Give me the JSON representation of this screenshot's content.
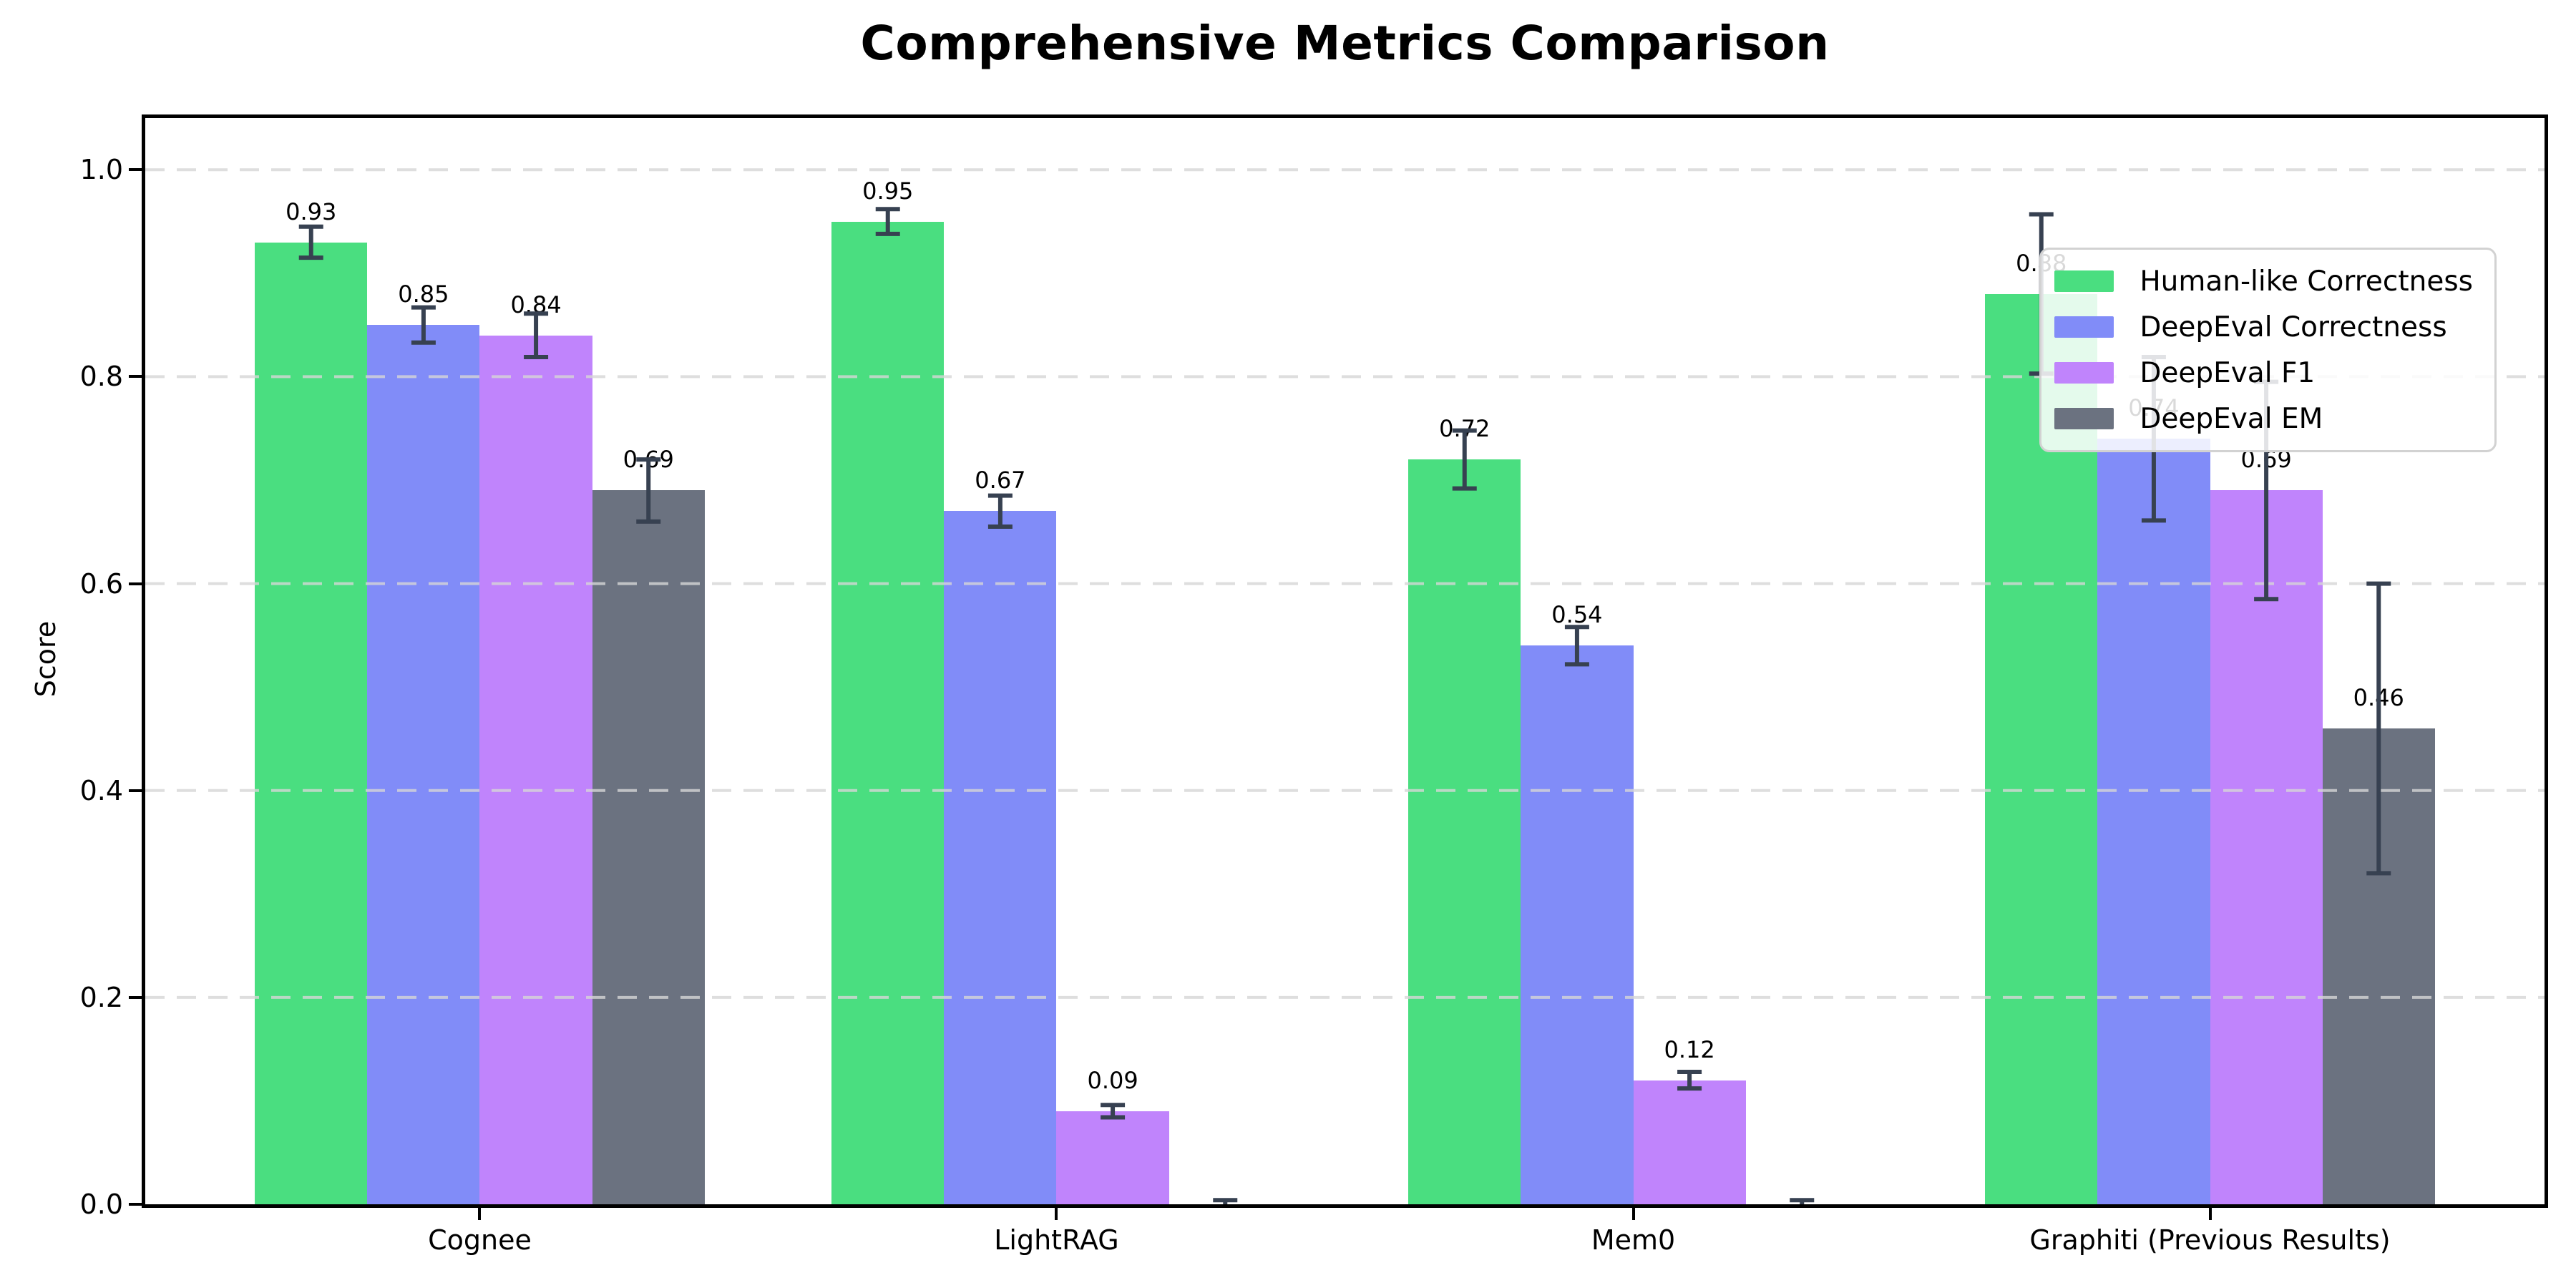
{
  "title": "Comprehensive Metrics Comparison",
  "chart_data": {
    "type": "bar",
    "title": "Comprehensive Metrics Comparison",
    "xlabel": "",
    "ylabel": "Score",
    "ylim": [
      0,
      1.05
    ],
    "yticks": [
      0.0,
      0.2,
      0.4,
      0.6,
      0.8,
      1.0
    ],
    "ytick_labels": [
      "0.0",
      "0.2",
      "0.4",
      "0.6",
      "0.8",
      "1.0"
    ],
    "grid": "horizontal-dashed",
    "grid_color": "#d6d6d6",
    "error_bar_color": "#374151",
    "legend_position": "upper-right",
    "categories": [
      "Cognee",
      "LightRAG",
      "Mem0",
      "Graphiti (Previous Results)"
    ],
    "series": [
      {
        "name": "Human-like Correctness",
        "color": "#4ade80",
        "values": [
          0.93,
          0.95,
          0.72,
          0.88
        ],
        "errors": [
          0.015,
          0.012,
          0.028,
          0.077
        ],
        "labels": [
          "0.93",
          "0.95",
          "0.72",
          "0.88"
        ]
      },
      {
        "name": "DeepEval Correctness",
        "color": "#818cf8",
        "values": [
          0.85,
          0.67,
          0.54,
          0.74
        ],
        "errors": [
          0.017,
          0.015,
          0.018,
          0.079
        ],
        "labels": [
          "0.85",
          "0.67",
          "0.54",
          "0.74"
        ]
      },
      {
        "name": "DeepEval F1",
        "color": "#c084fc",
        "values": [
          0.84,
          0.09,
          0.12,
          0.69
        ],
        "errors": [
          0.021,
          0.006,
          0.008,
          0.105
        ],
        "labels": [
          "0.84",
          "0.09",
          "0.12",
          "0.69"
        ]
      },
      {
        "name": "DeepEval EM",
        "color": "#6b7280",
        "values": [
          0.69,
          0.0,
          0.0,
          0.46
        ],
        "errors": [
          0.03,
          0.004,
          0.004,
          0.14
        ],
        "labels": [
          "0.69",
          "",
          "",
          "0.46"
        ]
      }
    ]
  }
}
